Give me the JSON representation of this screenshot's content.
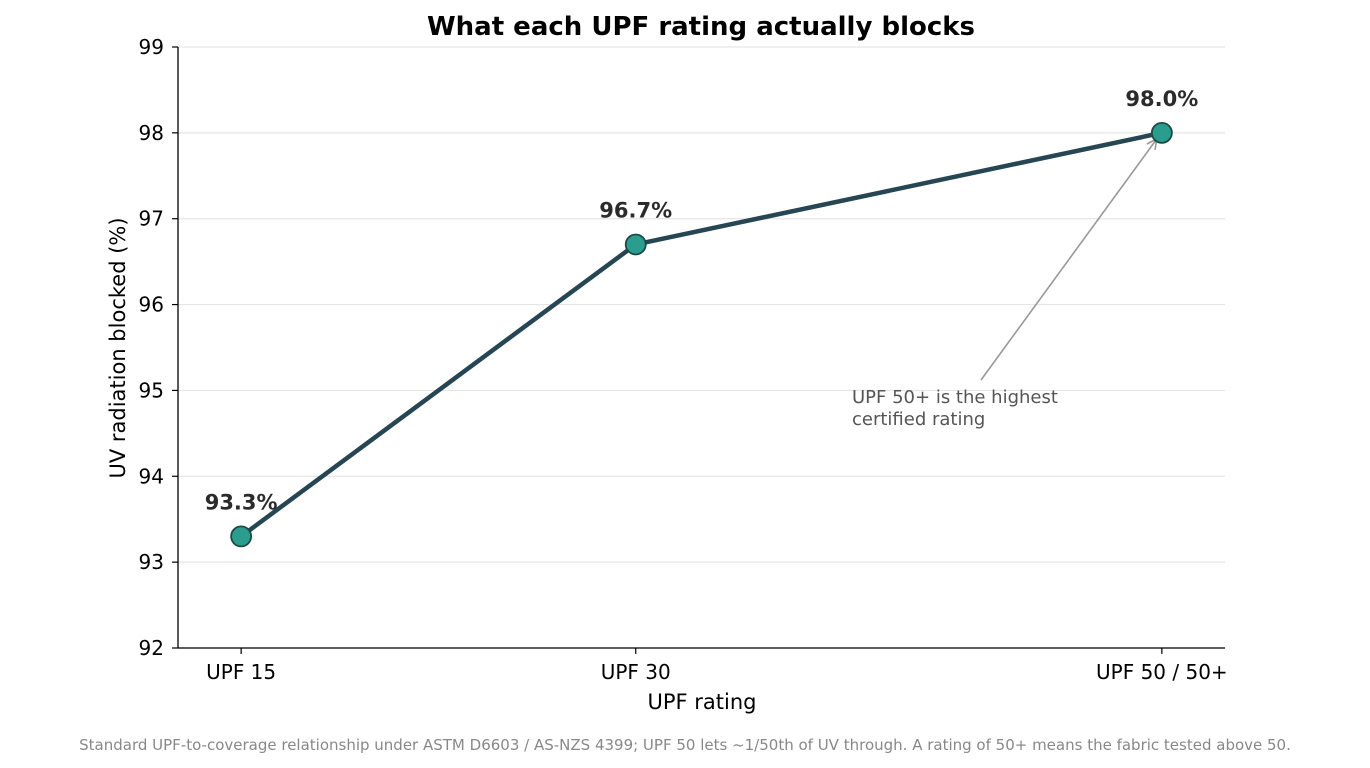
{
  "chart_data": {
    "type": "line",
    "title": "What each UPF rating actually blocks",
    "xlabel": "UPF rating",
    "ylabel": "UV radiation blocked (%)",
    "categories": [
      "UPF 15",
      "UPF 30",
      "UPF 50 / 50+"
    ],
    "x_numeric": [
      15,
      30,
      50
    ],
    "values": [
      93.3,
      96.7,
      98.0
    ],
    "data_labels": [
      "93.3%",
      "96.7%",
      "98.0%"
    ],
    "ylim": [
      92,
      99
    ],
    "yticks": [
      92,
      93,
      94,
      95,
      96,
      97,
      98,
      99
    ],
    "grid": "horizontal",
    "annotation": {
      "lines": [
        "UPF 50+ is the highest",
        "certified rating"
      ],
      "points_to": "UPF 50 / 50+"
    },
    "footnote": "Standard UPF-to-coverage relationship under ASTM D6603 / AS-NZS 4399; UPF 50 lets ~1/50th of UV through. A rating of 50+ means the fabric tested above 50.",
    "colors": {
      "line": "#264653",
      "marker_fill": "#2a9d8f",
      "marker_edge": "#1d4a43",
      "grid": "#e6e6e6",
      "annotation_arrow": "#999999"
    }
  }
}
